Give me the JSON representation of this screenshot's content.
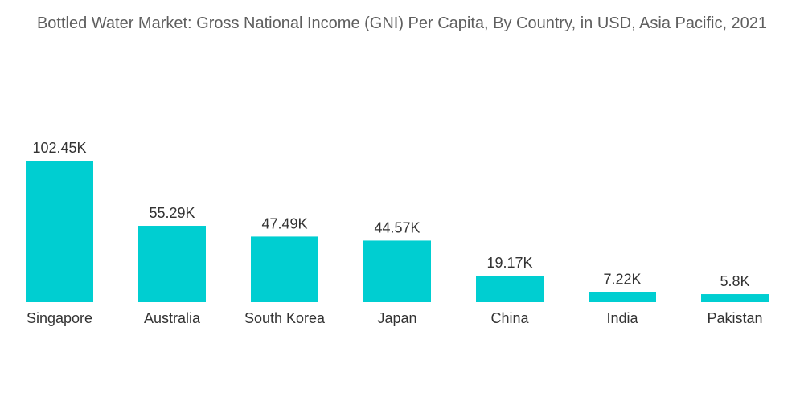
{
  "chart_data": {
    "type": "bar",
    "title": "Bottled Water Market: Gross National Income (GNI) Per Capita, By Country, in USD, Asia Pacific, 2021",
    "xlabel": "",
    "ylabel": "",
    "categories": [
      "Singapore",
      "Australia",
      "South Korea",
      "Japan",
      "China",
      "India",
      "Pakistan"
    ],
    "values": [
      102.45,
      55.29,
      47.49,
      44.57,
      19.17,
      7.22,
      5.8
    ],
    "data_labels": [
      "102.45K",
      "55.29K",
      "47.49K",
      "44.57K",
      "19.17K",
      "7.22K",
      "5.8K"
    ],
    "unit": "K",
    "ylim": [
      0,
      102.45
    ],
    "grid": false,
    "legend": "none",
    "bar_color": "#00ced1"
  }
}
